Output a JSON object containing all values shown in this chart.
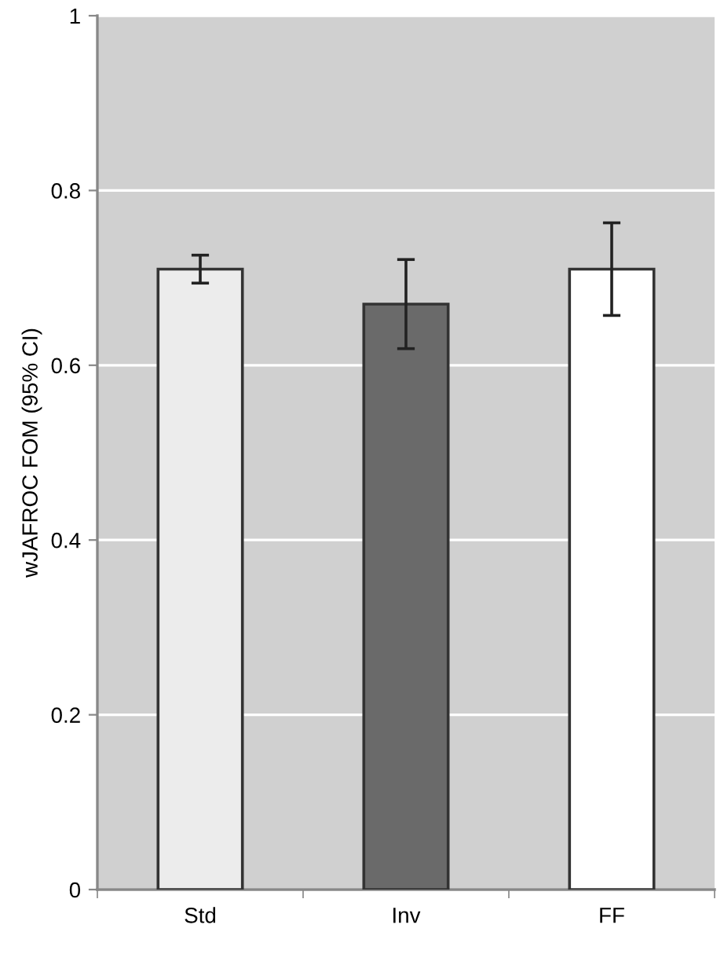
{
  "chart_data": {
    "type": "bar",
    "ylabel": "wJAFROC FOM (95% CI)",
    "categories": [
      "Std",
      "Inv",
      "FF"
    ],
    "values": [
      0.71,
      0.67,
      0.71
    ],
    "errors": [
      0.016,
      0.051,
      0.053
    ],
    "colors": [
      "#ececec",
      "#6a6a6a",
      "#ffffff"
    ],
    "ylim": [
      0,
      1
    ],
    "yticks": [
      0,
      0.2,
      0.4,
      0.6,
      0.8,
      1
    ],
    "grid": "y"
  }
}
